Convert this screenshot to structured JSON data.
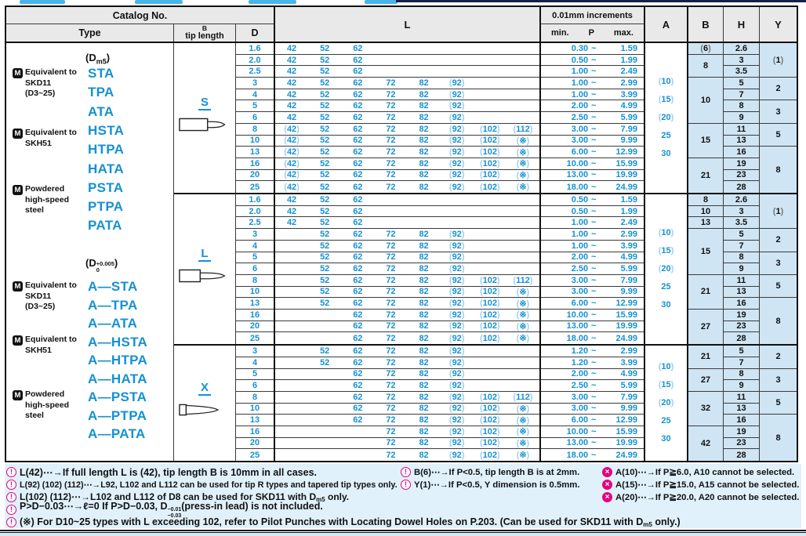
{
  "colors": {
    "accent_blue": "#1591d2",
    "column_bg": "#cfe5f4",
    "note_bg": "#e0f1fb",
    "pink": "#e5007d"
  },
  "header": {
    "catalog_no": "Catalog No.",
    "type": "Type",
    "tip_b": "B",
    "tip_length": "tip length",
    "d": "D",
    "l": "L",
    "increments": "0.01mm increments",
    "min": "min.",
    "p": "P",
    "max": "max.",
    "a": "A",
    "b": "B",
    "h": "H",
    "y": "Y"
  },
  "type_column": {
    "blocks": [
      {
        "dim": {
          "open": "(",
          "base": "D",
          "sub": "m5",
          "close": ")"
        },
        "groups": [
          {
            "mark": "M",
            "lines": [
              "Equivalent to",
              "SKD11",
              "(D3~25)"
            ]
          },
          {
            "mark": "M",
            "lines": [
              "Equivalent to",
              "SKH51"
            ]
          },
          {
            "mark": "M",
            "lines": [
              "Powdered",
              "high-speed",
              "steel"
            ]
          }
        ],
        "types": [
          "STA",
          "TPA",
          "ATA",
          "HSTA",
          "HTPA",
          "HATA",
          "PSTA",
          "PTPA",
          "PATA"
        ]
      },
      {
        "dim": {
          "open": "(",
          "base": "D",
          "sup": "+0.005",
          "sub": "0",
          "close": ")"
        },
        "groups": [
          {
            "mark": "M",
            "lines": [
              "Equivalent to",
              "SKD11",
              "(D3~25)"
            ]
          },
          {
            "mark": "M",
            "lines": [
              "Equivalent to",
              "SKH51"
            ]
          },
          {
            "mark": "M",
            "lines": [
              "Powdered",
              "high-speed",
              "steel"
            ]
          }
        ],
        "types": [
          "A—STA",
          "A—TPA",
          "A—ATA",
          "A—HSTA",
          "A—HTPA",
          "A—HATA",
          "A—PSTA",
          "A—PTPA",
          "A—PATA"
        ]
      }
    ]
  },
  "sections": [
    {
      "shape": "S",
      "a_values": [
        "(10)",
        "(15)",
        "(20)",
        "25",
        "30"
      ],
      "b_spans": [
        [
          "(6)",
          1
        ],
        [
          "8",
          2
        ],
        [
          "10",
          4
        ],
        [
          "15",
          3
        ],
        [
          "21",
          3
        ]
      ],
      "h_values": [
        "2.6",
        "3",
        "3.5",
        "5",
        "7",
        "8",
        "9",
        "11",
        "13",
        "16",
        "19",
        "23",
        "28"
      ],
      "y_spans": [
        [
          "(1)",
          3
        ],
        [
          "2",
          2
        ],
        [
          "3",
          2
        ],
        [
          "5",
          2
        ],
        [
          "8",
          4
        ]
      ],
      "rows": [
        {
          "d": "1.6",
          "l": [
            "42",
            "52",
            "62",
            "",
            "",
            "",
            "",
            ""
          ],
          "p": [
            "0.30",
            "1.59"
          ]
        },
        {
          "d": "2.0",
          "l": [
            "42",
            "52",
            "62",
            "",
            "",
            "",
            "",
            ""
          ],
          "p": [
            "0.50",
            "1.99"
          ]
        },
        {
          "d": "2.5",
          "l": [
            "42",
            "52",
            "62",
            "",
            "",
            "",
            "",
            ""
          ],
          "p": [
            "1.00",
            "2.49"
          ]
        },
        {
          "d": "3",
          "l": [
            "42",
            "52",
            "62",
            "72",
            "82",
            "(92)",
            "",
            ""
          ],
          "p": [
            "1.00",
            "2.99"
          ]
        },
        {
          "d": "4",
          "l": [
            "42",
            "52",
            "62",
            "72",
            "82",
            "(92)",
            "",
            ""
          ],
          "p": [
            "1.00",
            "3.99"
          ]
        },
        {
          "d": "5",
          "l": [
            "42",
            "52",
            "62",
            "72",
            "82",
            "(92)",
            "",
            ""
          ],
          "p": [
            "2.00",
            "4.99"
          ]
        },
        {
          "d": "6",
          "l": [
            "42",
            "52",
            "62",
            "72",
            "82",
            "(92)",
            "",
            ""
          ],
          "p": [
            "2.50",
            "5.99"
          ]
        },
        {
          "d": "8",
          "l": [
            "(42)",
            "52",
            "62",
            "72",
            "82",
            "(92)",
            "(102)",
            "(112)"
          ],
          "p": [
            "3.00",
            "7.99"
          ]
        },
        {
          "d": "10",
          "l": [
            "(42)",
            "52",
            "62",
            "72",
            "82",
            "(92)",
            "(102)",
            "(※)"
          ],
          "p": [
            "3.00",
            "9.99"
          ]
        },
        {
          "d": "13",
          "l": [
            "(42)",
            "52",
            "62",
            "72",
            "82",
            "(92)",
            "(102)",
            "(※)"
          ],
          "p": [
            "6.00",
            "12.99"
          ]
        },
        {
          "d": "16",
          "l": [
            "(42)",
            "52",
            "62",
            "72",
            "82",
            "(92)",
            "(102)",
            "(※)"
          ],
          "p": [
            "10.00",
            "15.99"
          ]
        },
        {
          "d": "20",
          "l": [
            "(42)",
            "52",
            "62",
            "72",
            "82",
            "(92)",
            "(102)",
            "(※)"
          ],
          "p": [
            "13.00",
            "19.99"
          ]
        },
        {
          "d": "25",
          "l": [
            "(42)",
            "52",
            "62",
            "72",
            "82",
            "(92)",
            "(102)",
            "(※)"
          ],
          "p": [
            "18.00",
            "24.99"
          ]
        }
      ]
    },
    {
      "shape": "L",
      "a_values": [
        "(10)",
        "(15)",
        "(20)",
        "25",
        "30"
      ],
      "b_spans": [
        [
          "8",
          1
        ],
        [
          "10",
          1
        ],
        [
          "13",
          1
        ],
        [
          "15",
          4
        ],
        [
          "21",
          3
        ],
        [
          "27",
          3
        ]
      ],
      "h_values": [
        "2.6",
        "3",
        "3.5",
        "5",
        "7",
        "8",
        "9",
        "11",
        "13",
        "16",
        "19",
        "23",
        "28"
      ],
      "y_spans": [
        [
          "(1)",
          3
        ],
        [
          "2",
          2
        ],
        [
          "3",
          2
        ],
        [
          "5",
          2
        ],
        [
          "8",
          4
        ]
      ],
      "rows": [
        {
          "d": "1.6",
          "l": [
            "42",
            "52",
            "62",
            "",
            "",
            "",
            "",
            ""
          ],
          "p": [
            "0.50",
            "1.59"
          ]
        },
        {
          "d": "2.0",
          "l": [
            "42",
            "52",
            "62",
            "",
            "",
            "",
            "",
            ""
          ],
          "p": [
            "0.50",
            "1.99"
          ]
        },
        {
          "d": "2.5",
          "l": [
            "42",
            "52",
            "62",
            "",
            "",
            "",
            "",
            ""
          ],
          "p": [
            "1.00",
            "2.49"
          ]
        },
        {
          "d": "3",
          "l": [
            "",
            "52",
            "62",
            "72",
            "82",
            "(92)",
            "",
            ""
          ],
          "p": [
            "1.00",
            "2.99"
          ]
        },
        {
          "d": "4",
          "l": [
            "",
            "52",
            "62",
            "72",
            "82",
            "(92)",
            "",
            ""
          ],
          "p": [
            "1.00",
            "3.99"
          ]
        },
        {
          "d": "5",
          "l": [
            "",
            "52",
            "62",
            "72",
            "82",
            "(92)",
            "",
            ""
          ],
          "p": [
            "2.00",
            "4.99"
          ]
        },
        {
          "d": "6",
          "l": [
            "",
            "52",
            "62",
            "72",
            "82",
            "(92)",
            "",
            ""
          ],
          "p": [
            "2.50",
            "5.99"
          ]
        },
        {
          "d": "8",
          "l": [
            "",
            "52",
            "62",
            "72",
            "82",
            "(92)",
            "(102)",
            "(112)"
          ],
          "p": [
            "3.00",
            "7.99"
          ]
        },
        {
          "d": "10",
          "l": [
            "",
            "52",
            "62",
            "72",
            "82",
            "(92)",
            "(102)",
            "(※)"
          ],
          "p": [
            "3.00",
            "9.99"
          ]
        },
        {
          "d": "13",
          "l": [
            "",
            "52",
            "62",
            "72",
            "82",
            "(92)",
            "(102)",
            "(※)"
          ],
          "p": [
            "6.00",
            "12.99"
          ]
        },
        {
          "d": "16",
          "l": [
            "",
            "",
            "62",
            "72",
            "82",
            "(92)",
            "(102)",
            "(※)"
          ],
          "p": [
            "10.00",
            "15.99"
          ]
        },
        {
          "d": "20",
          "l": [
            "",
            "",
            "62",
            "72",
            "82",
            "(92)",
            "(102)",
            "(※)"
          ],
          "p": [
            "13.00",
            "19.99"
          ]
        },
        {
          "d": "25",
          "l": [
            "",
            "",
            "62",
            "72",
            "82",
            "(92)",
            "(102)",
            "(※)"
          ],
          "p": [
            "18.00",
            "24.99"
          ]
        }
      ]
    },
    {
      "shape": "X",
      "a_values": [
        "(10)",
        "(15)",
        "(20)",
        "25",
        "30"
      ],
      "b_spans": [
        [
          "21",
          2
        ],
        [
          "27",
          2
        ],
        [
          "32",
          3
        ],
        [
          "42",
          3
        ]
      ],
      "h_values": [
        "5",
        "7",
        "8",
        "9",
        "11",
        "13",
        "16",
        "19",
        "23",
        "28"
      ],
      "y_spans": [
        [
          "2",
          2
        ],
        [
          "3",
          2
        ],
        [
          "5",
          2
        ],
        [
          "8",
          4
        ]
      ],
      "rows": [
        {
          "d": "3",
          "l": [
            "",
            "52",
            "62",
            "72",
            "82",
            "(92)",
            "",
            ""
          ],
          "p": [
            "1.20",
            "2.99"
          ]
        },
        {
          "d": "4",
          "l": [
            "",
            "52",
            "62",
            "72",
            "82",
            "(92)",
            "",
            ""
          ],
          "p": [
            "1.20",
            "3.99"
          ]
        },
        {
          "d": "5",
          "l": [
            "",
            "",
            "62",
            "72",
            "82",
            "(92)",
            "",
            ""
          ],
          "p": [
            "2.00",
            "4.99"
          ]
        },
        {
          "d": "6",
          "l": [
            "",
            "",
            "62",
            "72",
            "82",
            "(92)",
            "",
            ""
          ],
          "p": [
            "2.50",
            "5.99"
          ]
        },
        {
          "d": "8",
          "l": [
            "",
            "",
            "62",
            "72",
            "82",
            "(92)",
            "(102)",
            "(112)"
          ],
          "p": [
            "3.00",
            "7.99"
          ]
        },
        {
          "d": "10",
          "l": [
            "",
            "",
            "62",
            "72",
            "82",
            "(92)",
            "(102)",
            "(※)"
          ],
          "p": [
            "3.00",
            "9.99"
          ]
        },
        {
          "d": "13",
          "l": [
            "",
            "",
            "62",
            "72",
            "82",
            "(92)",
            "(102)",
            "(※)"
          ],
          "p": [
            "6.00",
            "12.99"
          ]
        },
        {
          "d": "16",
          "l": [
            "",
            "",
            "",
            "72",
            "82",
            "(92)",
            "(102)",
            "(※)"
          ],
          "p": [
            "10.00",
            "15.99"
          ]
        },
        {
          "d": "20",
          "l": [
            "",
            "",
            "",
            "72",
            "82",
            "(92)",
            "(102)",
            "(※)"
          ],
          "p": [
            "13.00",
            "19.99"
          ]
        },
        {
          "d": "25",
          "l": [
            "",
            "",
            "",
            "72",
            "82",
            "(92)",
            "(102)",
            "(※)"
          ],
          "p": [
            "18.00",
            "24.99"
          ]
        }
      ]
    }
  ],
  "notes": {
    "left": [
      {
        "icon": "warn",
        "parts": [
          "L(42)⋯→If full length L is (42), tip length B is 10mm in all cases."
        ]
      },
      {
        "icon": "warn",
        "parts": [
          "L(92) (102) (112)⋯→L92,  L102 and L112 can be used for tip R types and tapered tip types only."
        ]
      },
      {
        "icon": "warn",
        "parts": [
          "L(102) (112)⋯→L102 and L112 of D8 can be used for SKD11 with D",
          {
            "sub": "m5"
          },
          " only."
        ]
      },
      {
        "icon": "warn",
        "parts": [
          "P>D−0.03⋯→ℓ=0    If P>D−0.03, D",
          {
            "stack": [
              "−0.01",
              "−0.03"
            ]
          },
          "(press-in lead) is not included."
        ]
      },
      {
        "icon": "warn",
        "parts": [
          "(※) For D10~25 types with L exceeding 102, refer to Pilot Punches with Locating Dowel Holes on P.203. (Can be used for SKD11 with D",
          {
            "sub": "m5"
          },
          " only.)"
        ]
      }
    ],
    "mid": [
      {
        "icon": "warn",
        "parts": [
          "B(6)⋯→If P<0.5, tip length B is at 2mm."
        ]
      },
      {
        "icon": "warn",
        "parts": [
          "Y(1)⋯→If P<0.5, Y dimension is 0.5mm."
        ]
      }
    ],
    "right": [
      {
        "icon": "no",
        "parts": [
          "A(10)⋯→If P≧6.0, A10 cannot be selected."
        ]
      },
      {
        "icon": "no",
        "parts": [
          "A(15)⋯→If P≧15.0, A15 cannot be selected."
        ]
      },
      {
        "icon": "no",
        "parts": [
          "A(20)⋯→If P≧20.0, A20 cannot be selected."
        ]
      }
    ]
  }
}
